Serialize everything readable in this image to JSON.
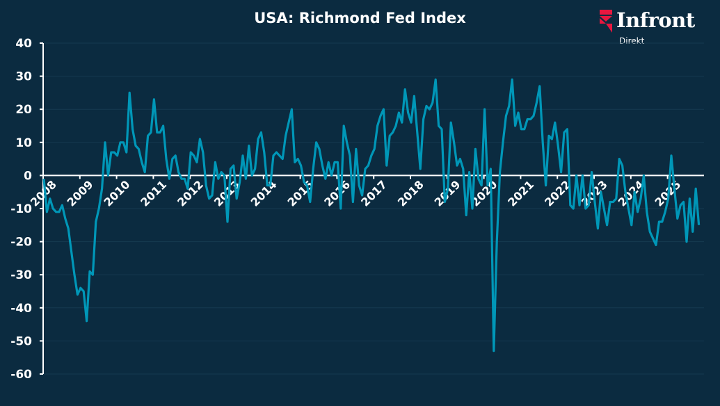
{
  "header": {
    "title": "USA: Richmond Fed Index"
  },
  "logo": {
    "brand": "Infront",
    "sub": "Direkt",
    "accent": "#e8173f"
  },
  "chart_data": {
    "type": "line",
    "title": "USA: Richmond Fed Index",
    "xlabel": "",
    "ylabel": "",
    "start": "2008-01",
    "frequency": "monthly",
    "ylim": [
      -60,
      40
    ],
    "xlim": [
      2008,
      2026
    ],
    "yticks": [
      40,
      30,
      20,
      10,
      0,
      -10,
      -20,
      -30,
      -40,
      -50,
      -60
    ],
    "xticks": [
      "2008",
      "2009",
      "2010",
      "2011",
      "2012",
      "2013",
      "2014",
      "2015",
      "2016",
      "2017",
      "2018",
      "2019",
      "2020",
      "2021",
      "2022",
      "2023",
      "2024",
      "2025"
    ],
    "grid": true,
    "legend": "none",
    "line_color": "#0097b8",
    "series": [
      {
        "name": "Richmond Fed Index",
        "values": [
          -1,
          -11,
          -7,
          -10,
          -11,
          -11,
          -9,
          -13,
          -16,
          -23,
          -30,
          -36,
          -34,
          -35,
          -44,
          -29,
          -30,
          -14,
          -10,
          -4,
          10,
          0,
          7,
          7,
          6,
          10,
          10,
          7,
          25,
          14,
          9,
          8,
          4,
          1,
          12,
          13,
          23,
          13,
          13,
          15,
          5,
          -1,
          5,
          6,
          1,
          -1,
          -1,
          -4,
          7,
          6,
          4,
          11,
          7,
          -3,
          -7,
          -6,
          4,
          -1,
          1,
          0,
          -14,
          2,
          3,
          -7,
          -2,
          6,
          -1,
          9,
          0,
          2,
          11,
          13,
          7,
          -3,
          -3,
          6,
          7,
          6,
          5,
          12,
          16,
          20,
          4,
          5,
          3,
          -2,
          -3,
          -8,
          2,
          10,
          8,
          3,
          -1,
          4,
          0,
          4,
          4,
          -10,
          15,
          10,
          6,
          -8,
          8,
          -3,
          -6,
          2,
          3,
          6,
          8,
          15,
          18,
          20,
          3,
          12,
          13,
          15,
          19,
          16,
          26,
          19,
          16,
          24,
          13,
          2,
          17,
          21,
          20,
          22,
          29,
          15,
          14,
          -8,
          -4,
          16,
          10,
          3,
          5,
          2,
          -12,
          1,
          -10,
          8,
          -1,
          -3,
          20,
          -3,
          2,
          -53,
          -20,
          1,
          10,
          18,
          21,
          29,
          15,
          19,
          14,
          14,
          17,
          17,
          18,
          22,
          27,
          10,
          -3,
          12,
          11,
          16,
          9,
          1,
          13,
          14,
          -9,
          -10,
          0,
          -9,
          0,
          -10,
          -9,
          1,
          -8,
          -16,
          -5,
          -10,
          -15,
          -8,
          -8,
          -7,
          5,
          3,
          -5,
          -10,
          -15,
          -5,
          -11,
          -7,
          0,
          -11,
          -17,
          -19,
          -21,
          -14,
          -14,
          -11,
          -7,
          6,
          -4,
          -13,
          -9,
          -8,
          -20,
          -7,
          -17,
          -4,
          -15
        ]
      }
    ]
  }
}
